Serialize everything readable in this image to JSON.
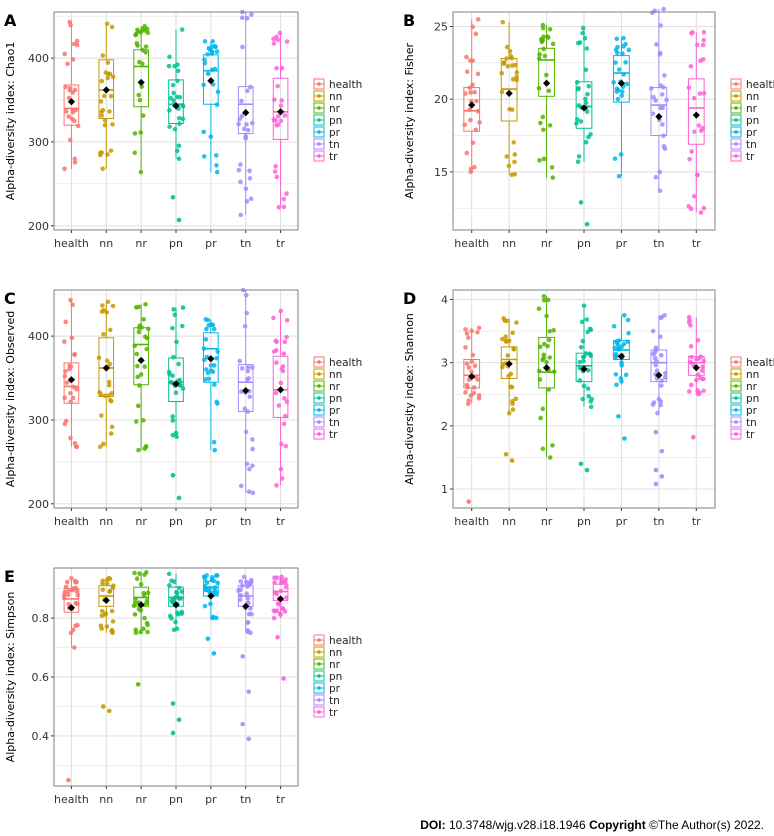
{
  "palette": {
    "health": "#F8766D",
    "nn": "#C49A00",
    "nr": "#53B400",
    "pn": "#00C094",
    "pr": "#00B6EB",
    "tn": "#A58AFF",
    "tr": "#FB61D7",
    "mean_marker": "#000000",
    "grid": "#dcdcdc",
    "panel_border": "#7f7f7f"
  },
  "chart_data": [
    {
      "panel_label": "A",
      "type": "box",
      "ylabel": "Alpha-diversity index: Chao1",
      "xlabel": "",
      "categories": [
        "health",
        "nn",
        "nr",
        "pn",
        "pr",
        "tn",
        "tr"
      ],
      "ylim": [
        195,
        455
      ],
      "yticks": [
        200,
        300,
        400
      ],
      "legend": [
        "health",
        "nn",
        "nr",
        "pn",
        "pr",
        "tn",
        "tr"
      ],
      "legend_position": "right",
      "boxes": [
        {
          "group": "health",
          "min": 268,
          "q1": 320,
          "median": 340,
          "q3": 368,
          "max": 443,
          "mean": 348
        },
        {
          "group": "nn",
          "min": 268,
          "q1": 328,
          "median": 362,
          "q3": 398,
          "max": 441,
          "mean": 362
        },
        {
          "group": "nr",
          "min": 264,
          "q1": 342,
          "median": 390,
          "q3": 410,
          "max": 438,
          "mean": 371
        },
        {
          "group": "pn",
          "min": 280,
          "q1": 322,
          "median": 345,
          "q3": 374,
          "max": 434,
          "mean": 343
        },
        {
          "group": "pr",
          "min": 264,
          "q1": 345,
          "median": 385,
          "q3": 404,
          "max": 420,
          "mean": 373
        },
        {
          "group": "tn",
          "min": 213,
          "q1": 310,
          "median": 345,
          "q3": 366,
          "max": 455,
          "mean": 335
        },
        {
          "group": "tr",
          "min": 222,
          "q1": 303,
          "median": 336,
          "q3": 376,
          "max": 430,
          "mean": 336
        }
      ],
      "outliers": [
        {
          "group": "pn",
          "values": [
            234,
            207
          ]
        }
      ]
    },
    {
      "panel_label": "B",
      "type": "box",
      "ylabel": "Alpha-diversity index: Fisher",
      "xlabel": "",
      "categories": [
        "health",
        "nn",
        "nr",
        "pn",
        "pr",
        "tn",
        "tr"
      ],
      "ylim": [
        11,
        26
      ],
      "yticks": [
        15,
        20,
        25
      ],
      "legend": [
        "health",
        "nn",
        "nr",
        "pn",
        "pr",
        "tn",
        "tr"
      ],
      "legend_position": "right",
      "boxes": [
        {
          "group": "health",
          "min": 15.0,
          "q1": 17.8,
          "median": 19.2,
          "q3": 20.8,
          "max": 25.5,
          "mean": 19.6
        },
        {
          "group": "nn",
          "min": 14.8,
          "q1": 18.5,
          "median": 20.7,
          "q3": 22.8,
          "max": 25.3,
          "mean": 20.4
        },
        {
          "group": "nr",
          "min": 14.6,
          "q1": 20.2,
          "median": 22.7,
          "q3": 23.5,
          "max": 25.1,
          "mean": 21.1
        },
        {
          "group": "pn",
          "min": 15.7,
          "q1": 18.0,
          "median": 19.5,
          "q3": 21.2,
          "max": 24.9,
          "mean": 19.4
        },
        {
          "group": "pr",
          "min": 14.7,
          "q1": 19.8,
          "median": 21.8,
          "q3": 23.0,
          "max": 24.2,
          "mean": 21.1
        },
        {
          "group": "tn",
          "min": 13.7,
          "q1": 17.5,
          "median": 19.6,
          "q3": 20.8,
          "max": 26.2,
          "mean": 18.8
        },
        {
          "group": "tr",
          "min": 12.2,
          "q1": 16.9,
          "median": 19.4,
          "q3": 21.4,
          "max": 24.6,
          "mean": 18.9
        }
      ],
      "outliers": [
        {
          "group": "pn",
          "values": [
            12.9,
            11.4
          ]
        }
      ]
    },
    {
      "panel_label": "C",
      "type": "box",
      "ylabel": "Alpha-diversity index: Observed",
      "xlabel": "",
      "categories": [
        "health",
        "nn",
        "nr",
        "pn",
        "pr",
        "tn",
        "tr"
      ],
      "ylim": [
        195,
        455
      ],
      "yticks": [
        200,
        300,
        400
      ],
      "legend": [
        "health",
        "nn",
        "nr",
        "pn",
        "pr",
        "tn",
        "tr"
      ],
      "legend_position": "right",
      "boxes": [
        {
          "group": "health",
          "min": 268,
          "q1": 320,
          "median": 340,
          "q3": 368,
          "max": 443,
          "mean": 348
        },
        {
          "group": "nn",
          "min": 268,
          "q1": 328,
          "median": 362,
          "q3": 398,
          "max": 441,
          "mean": 362
        },
        {
          "group": "nr",
          "min": 264,
          "q1": 342,
          "median": 390,
          "q3": 410,
          "max": 438,
          "mean": 371
        },
        {
          "group": "pn",
          "min": 280,
          "q1": 322,
          "median": 345,
          "q3": 374,
          "max": 434,
          "mean": 343
        },
        {
          "group": "pr",
          "min": 264,
          "q1": 345,
          "median": 385,
          "q3": 404,
          "max": 420,
          "mean": 373
        },
        {
          "group": "tn",
          "min": 213,
          "q1": 310,
          "median": 345,
          "q3": 366,
          "max": 455,
          "mean": 335
        },
        {
          "group": "tr",
          "min": 222,
          "q1": 303,
          "median": 336,
          "q3": 376,
          "max": 430,
          "mean": 336
        }
      ],
      "outliers": [
        {
          "group": "pn",
          "values": [
            234,
            207
          ]
        }
      ]
    },
    {
      "panel_label": "D",
      "type": "box",
      "ylabel": "Alpha-diversity index: Shannon",
      "xlabel": "",
      "categories": [
        "health",
        "nn",
        "nr",
        "pn",
        "pr",
        "tn",
        "tr"
      ],
      "ylim": [
        0.7,
        4.15
      ],
      "yticks": [
        1,
        2,
        3,
        4
      ],
      "legend": [
        "health",
        "nn",
        "nr",
        "pn",
        "pr",
        "tn",
        "tr"
      ],
      "legend_position": "right",
      "boxes": [
        {
          "group": "health",
          "min": 2.35,
          "q1": 2.6,
          "median": 2.8,
          "q3": 3.05,
          "max": 3.55,
          "mean": 2.78
        },
        {
          "group": "nn",
          "min": 2.2,
          "q1": 2.75,
          "median": 3.05,
          "q3": 3.25,
          "max": 3.7,
          "mean": 2.98
        },
        {
          "group": "nr",
          "min": 1.5,
          "q1": 2.6,
          "median": 2.85,
          "q3": 3.4,
          "max": 4.05,
          "mean": 2.92
        },
        {
          "group": "pn",
          "min": 2.3,
          "q1": 2.7,
          "median": 2.95,
          "q3": 3.15,
          "max": 3.9,
          "mean": 2.9
        },
        {
          "group": "pr",
          "min": 2.65,
          "q1": 3.05,
          "median": 3.2,
          "q3": 3.35,
          "max": 3.75,
          "mean": 3.1
        },
        {
          "group": "tn",
          "min": 2.2,
          "q1": 2.7,
          "median": 3.0,
          "q3": 3.2,
          "max": 3.75,
          "mean": 2.8
        },
        {
          "group": "tr",
          "min": 2.5,
          "q1": 2.8,
          "median": 3.0,
          "q3": 3.1,
          "max": 3.72,
          "mean": 2.92
        }
      ],
      "outliers": [
        {
          "group": "health",
          "values": [
            0.8
          ]
        },
        {
          "group": "nn",
          "values": [
            1.55,
            1.45
          ]
        },
        {
          "group": "pn",
          "values": [
            1.4,
            1.3
          ]
        },
        {
          "group": "pr",
          "values": [
            2.15,
            1.8
          ]
        },
        {
          "group": "tn",
          "values": [
            1.9,
            1.6,
            1.3,
            1.2,
            1.08
          ]
        },
        {
          "group": "tr",
          "values": [
            1.82
          ]
        }
      ]
    },
    {
      "panel_label": "E",
      "type": "box",
      "ylabel": "Alpha-diversity index: Simpson",
      "xlabel": "",
      "categories": [
        "health",
        "nn",
        "nr",
        "pn",
        "pr",
        "tn",
        "tr"
      ],
      "ylim": [
        0.23,
        0.97
      ],
      "yticks": [
        0.4,
        0.6,
        0.8
      ],
      "legend": [
        "health",
        "nn",
        "nr",
        "pn",
        "pr",
        "tn",
        "tr"
      ],
      "legend_position": "right",
      "boxes": [
        {
          "group": "health",
          "min": 0.7,
          "q1": 0.82,
          "median": 0.865,
          "q3": 0.9,
          "max": 0.935,
          "mean": 0.835
        },
        {
          "group": "nn",
          "min": 0.75,
          "q1": 0.84,
          "median": 0.875,
          "q3": 0.91,
          "max": 0.935,
          "mean": 0.86
        },
        {
          "group": "nr",
          "min": 0.75,
          "q1": 0.84,
          "median": 0.87,
          "q3": 0.905,
          "max": 0.955,
          "mean": 0.845
        },
        {
          "group": "pn",
          "min": 0.76,
          "q1": 0.84,
          "median": 0.87,
          "q3": 0.905,
          "max": 0.95,
          "mean": 0.845
        },
        {
          "group": "pr",
          "min": 0.8,
          "q1": 0.875,
          "median": 0.905,
          "q3": 0.925,
          "max": 0.945,
          "mean": 0.875
        },
        {
          "group": "tn",
          "min": 0.75,
          "q1": 0.84,
          "median": 0.875,
          "q3": 0.91,
          "max": 0.94,
          "mean": 0.84
        },
        {
          "group": "tr",
          "min": 0.8,
          "q1": 0.86,
          "median": 0.89,
          "q3": 0.915,
          "max": 0.94,
          "mean": 0.865
        }
      ],
      "outliers": [
        {
          "group": "health",
          "values": [
            0.25
          ]
        },
        {
          "group": "nn",
          "values": [
            0.5,
            0.485
          ]
        },
        {
          "group": "nr",
          "values": [
            0.575
          ]
        },
        {
          "group": "pn",
          "values": [
            0.51,
            0.455,
            0.41
          ]
        },
        {
          "group": "pr",
          "values": [
            0.73,
            0.68
          ]
        },
        {
          "group": "tn",
          "values": [
            0.67,
            0.55,
            0.44,
            0.39
          ]
        },
        {
          "group": "tr",
          "values": [
            0.735,
            0.595
          ]
        }
      ]
    }
  ],
  "footer": {
    "doi_label": "DOI:",
    "doi_value": "10.3748/wjg.v28.i18.1946",
    "copyright_label": "Copyright",
    "copyright_value": "©The Author(s) 2022."
  }
}
